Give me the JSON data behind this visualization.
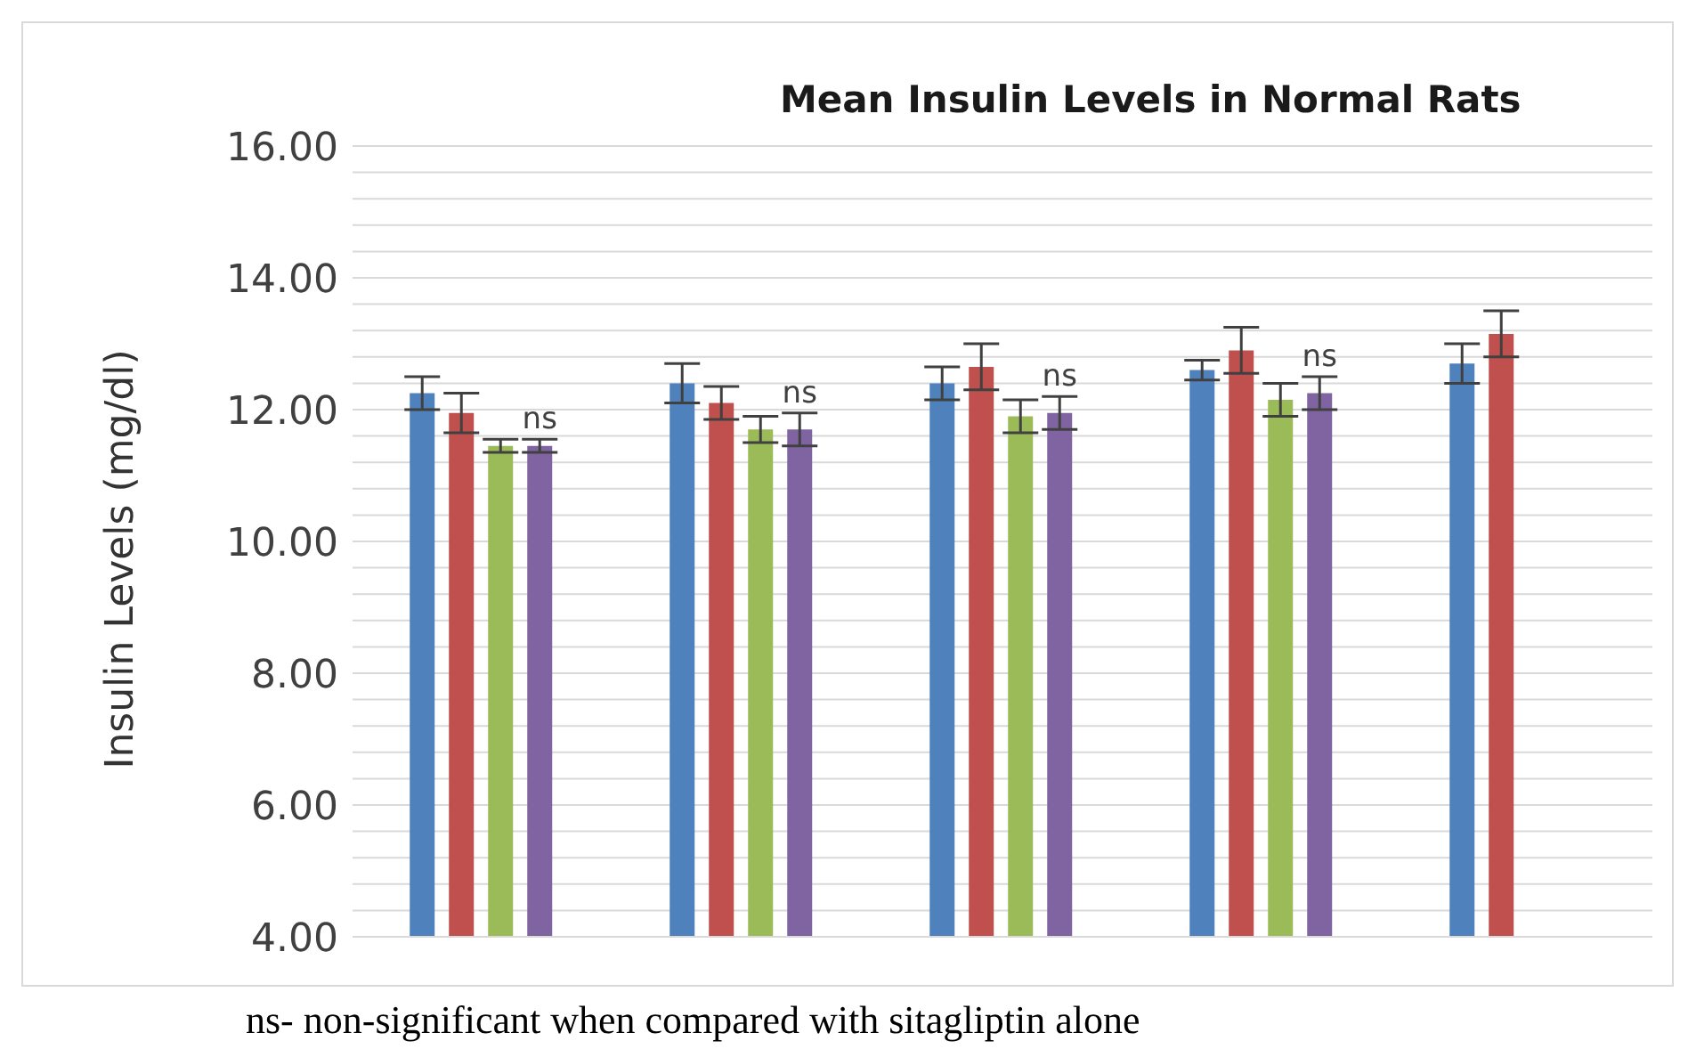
{
  "chart_data": {
    "type": "bar",
    "title": "Mean Insulin Levels in Normal Rats",
    "ylabel": "Insulin Levels (mg/dl)",
    "categories": [
      null,
      null,
      null,
      null,
      null
    ],
    "series": [
      {
        "color": "#4f81bd",
        "values": [
          12.25,
          12.4,
          12.4,
          12.6,
          12.7
        ],
        "errors": [
          0.25,
          0.3,
          0.25,
          0.15,
          0.3
        ]
      },
      {
        "color": "#c0504d",
        "values": [
          11.95,
          12.1,
          12.65,
          12.9,
          13.15
        ],
        "errors": [
          0.3,
          0.25,
          0.35,
          0.35,
          0.35
        ]
      },
      {
        "color": "#9bbb59",
        "values": [
          11.45,
          11.7,
          11.9,
          12.15,
          null
        ],
        "errors": [
          0.1,
          0.2,
          0.25,
          0.25,
          null
        ]
      },
      {
        "color": "#8064a2",
        "values": [
          11.45,
          11.7,
          11.95,
          12.25,
          null
        ],
        "errors": [
          0.1,
          0.25,
          0.25,
          0.25,
          null
        ],
        "value_labels": [
          "ns",
          "ns",
          "ns",
          "ns",
          null
        ]
      }
    ],
    "ylim": [
      4,
      16
    ],
    "yticks": [
      {
        "value": 4,
        "label": "4.00"
      },
      {
        "value": 4.4,
        "label": null
      },
      {
        "value": 4.8,
        "label": null
      },
      {
        "value": 5.2,
        "label": null
      },
      {
        "value": 5.6,
        "label": null
      },
      {
        "value": 6,
        "label": "6.00"
      },
      {
        "value": 6.4,
        "label": null
      },
      {
        "value": 6.8,
        "label": null
      },
      {
        "value": 7.2,
        "label": null
      },
      {
        "value": 7.6,
        "label": null
      },
      {
        "value": 8,
        "label": "8.00"
      },
      {
        "value": 8.4,
        "label": null
      },
      {
        "value": 8.8,
        "label": null
      },
      {
        "value": 9.2,
        "label": null
      },
      {
        "value": 9.6,
        "label": null
      },
      {
        "value": 10,
        "label": "10.00"
      },
      {
        "value": 10.4,
        "label": null
      },
      {
        "value": 10.8,
        "label": null
      },
      {
        "value": 11.2,
        "label": null
      },
      {
        "value": 11.6,
        "label": null
      },
      {
        "value": 12,
        "label": "12.00"
      },
      {
        "value": 12.4,
        "label": null
      },
      {
        "value": 12.8,
        "label": null
      },
      {
        "value": 13.2,
        "label": null
      },
      {
        "value": 13.6,
        "label": null
      },
      {
        "value": 14,
        "label": "14.00"
      },
      {
        "value": 14.4,
        "label": null
      },
      {
        "value": 14.8,
        "label": null
      },
      {
        "value": 15.2,
        "label": null
      },
      {
        "value": 15.6,
        "label": null
      },
      {
        "value": 16,
        "label": "16.00"
      }
    ],
    "grid": "y",
    "annotations": [
      "ns- non-significant when compared with sitagliptin alone"
    ]
  }
}
